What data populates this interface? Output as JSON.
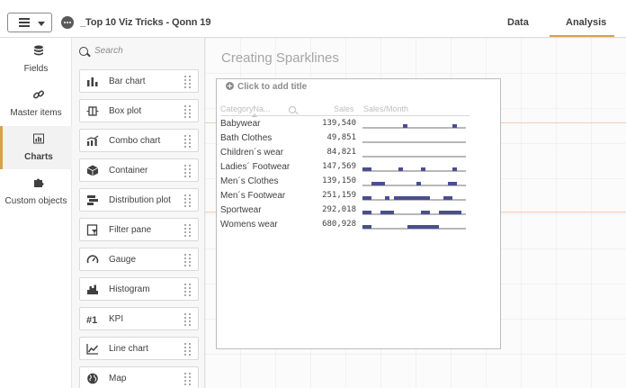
{
  "topbar": {
    "app_title": "_Top 10 Viz Tricks - Qonn 19",
    "tabs": [
      {
        "label": "Data",
        "active": false
      },
      {
        "label": "Analysis",
        "active": true
      }
    ],
    "accent_color": "#d8a14a"
  },
  "leftnav": {
    "items": [
      {
        "label": "Fields",
        "icon": "database-icon",
        "active": false
      },
      {
        "label": "Master items",
        "icon": "link-icon",
        "active": false
      },
      {
        "label": "Charts",
        "icon": "bar-chart-icon",
        "active": true
      },
      {
        "label": "Custom objects",
        "icon": "puzzle-icon",
        "active": false
      }
    ]
  },
  "assets": {
    "search_placeholder": "Search",
    "items": [
      {
        "label": "Bar chart",
        "icon": "bar-chart-icon"
      },
      {
        "label": "Box plot",
        "icon": "box-plot-icon"
      },
      {
        "label": "Combo chart",
        "icon": "combo-chart-icon"
      },
      {
        "label": "Container",
        "icon": "container-icon"
      },
      {
        "label": "Distribution plot",
        "icon": "distribution-plot-icon"
      },
      {
        "label": "Filter pane",
        "icon": "filter-pane-icon"
      },
      {
        "label": "Gauge",
        "icon": "gauge-icon"
      },
      {
        "label": "Histogram",
        "icon": "histogram-icon"
      },
      {
        "label": "KPI",
        "icon": "kpi-icon"
      },
      {
        "label": "Line chart",
        "icon": "line-chart-icon"
      },
      {
        "label": "Map",
        "icon": "globe-icon"
      }
    ]
  },
  "sheet": {
    "title": "Creating Sparklines",
    "chart_title_prompt": "Click to add title"
  },
  "table": {
    "headers": {
      "category": "CategoryNa...",
      "sales": "Sales",
      "sparkline": "Sales/Month"
    },
    "spark_color": "#4a4e8f",
    "rows": [
      {
        "category": "Babywear",
        "sales": "139,540",
        "months": [
          0,
          0,
          0,
          0,
          0,
          0,
          0,
          0,
          0,
          1,
          0,
          0,
          0,
          0,
          0,
          0,
          0,
          0,
          0,
          0,
          1,
          0,
          0
        ]
      },
      {
        "category": "Bath Clothes",
        "sales": "49,851",
        "months": [
          0,
          0,
          0,
          0,
          0,
          0,
          0,
          0,
          0,
          0,
          0,
          0,
          0,
          0,
          0,
          0,
          0,
          0,
          0,
          0,
          0,
          0,
          0
        ]
      },
      {
        "category": "Children´s wear",
        "sales": "84,821",
        "months": [
          0,
          0,
          0,
          0,
          0,
          0,
          0,
          0,
          0,
          0,
          0,
          0,
          0,
          0,
          0,
          0,
          0,
          0,
          0,
          0,
          0,
          0,
          0
        ]
      },
      {
        "category": "Ladies´ Footwear",
        "sales": "147,569",
        "months": [
          1,
          1,
          0,
          0,
          0,
          0,
          0,
          0,
          1,
          0,
          0,
          0,
          0,
          1,
          0,
          0,
          0,
          0,
          0,
          0,
          1,
          0,
          0
        ]
      },
      {
        "category": "Men´s Clothes",
        "sales": "139,150",
        "months": [
          0,
          0,
          1,
          1,
          1,
          0,
          0,
          0,
          0,
          0,
          0,
          0,
          1,
          0,
          0,
          0,
          0,
          0,
          0,
          1,
          1,
          0,
          0
        ]
      },
      {
        "category": "Men´s Footwear",
        "sales": "251,159",
        "months": [
          1,
          1,
          0,
          0,
          0,
          1,
          0,
          1,
          1,
          1,
          1,
          1,
          1,
          1,
          1,
          0,
          0,
          0,
          1,
          1,
          0,
          0,
          0
        ]
      },
      {
        "category": "Sportwear",
        "sales": "292,018",
        "months": [
          1,
          1,
          0,
          0,
          1,
          1,
          1,
          0,
          0,
          0,
          0,
          0,
          0,
          1,
          1,
          0,
          0,
          1,
          1,
          1,
          1,
          1,
          0
        ]
      },
      {
        "category": "Womens wear",
        "sales": "680,928",
        "months": [
          1,
          1,
          0,
          0,
          0,
          0,
          0,
          0,
          0,
          0,
          1,
          1,
          1,
          1,
          1,
          1,
          1,
          0,
          0,
          0,
          0,
          0,
          0
        ]
      }
    ]
  }
}
